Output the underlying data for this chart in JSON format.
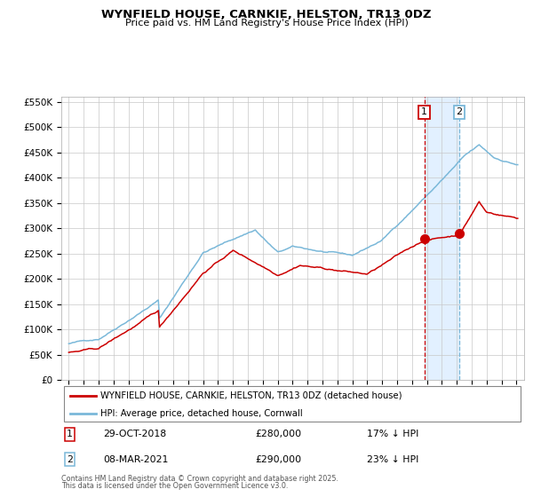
{
  "title": "WYNFIELD HOUSE, CARNKIE, HELSTON, TR13 0DZ",
  "subtitle": "Price paid vs. HM Land Registry's House Price Index (HPI)",
  "legend_line1": "WYNFIELD HOUSE, CARNKIE, HELSTON, TR13 0DZ (detached house)",
  "legend_line2": "HPI: Average price, detached house, Cornwall",
  "annotation1_date": "29-OCT-2018",
  "annotation1_price": "£280,000",
  "annotation1_hpi": "17% ↓ HPI",
  "annotation2_date": "08-MAR-2021",
  "annotation2_price": "£290,000",
  "annotation2_hpi": "23% ↓ HPI",
  "footnote1": "Contains HM Land Registry data © Crown copyright and database right 2025.",
  "footnote2": "This data is licensed under the Open Government Licence v3.0.",
  "hpi_color": "#7ab8d9",
  "property_color": "#cc0000",
  "vline1_color": "#cc0000",
  "vline2_color": "#7ab8d9",
  "shade_color": "#ddeeff",
  "marker_color": "#cc0000",
  "ylim": [
    0,
    560000
  ],
  "yticks": [
    0,
    50000,
    100000,
    150000,
    200000,
    250000,
    300000,
    350000,
    400000,
    450000,
    500000,
    550000
  ],
  "start_year": 1995,
  "end_year": 2025,
  "vline1_year": 2018.83,
  "vline2_year": 2021.17,
  "sale1_year": 2018.83,
  "sale1_value": 280000,
  "sale2_year": 2021.17,
  "sale2_value": 290000
}
